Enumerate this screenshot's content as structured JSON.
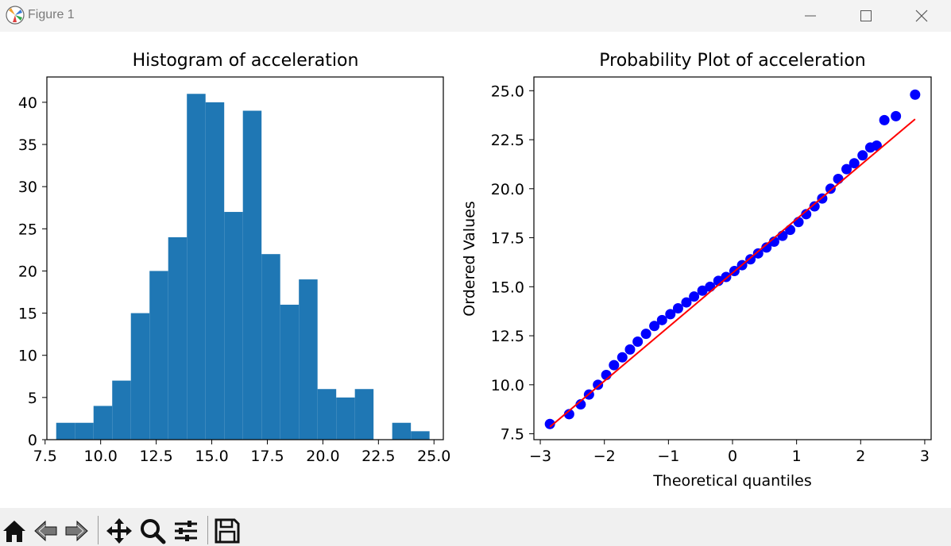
{
  "window": {
    "title": "Figure 1"
  },
  "toolbar": {
    "buttons": [
      "home-icon",
      "back-icon",
      "forward-icon",
      "pan-icon",
      "zoom-icon",
      "configure-icon",
      "save-icon"
    ]
  },
  "chart_data": [
    {
      "type": "bar",
      "title": "Histogram of acceleration",
      "xlabel": "",
      "ylabel": "",
      "xlim": [
        7.58,
        25.42
      ],
      "ylim": [
        0,
        43
      ],
      "xticks": [
        "7.5",
        "10.0",
        "12.5",
        "15.0",
        "17.5",
        "20.0",
        "22.5",
        "25.0"
      ],
      "yticks": [
        "0",
        "5",
        "10",
        "15",
        "20",
        "25",
        "30",
        "35",
        "40"
      ],
      "bin_edges": [
        8.0,
        8.84,
        9.68,
        10.52,
        11.36,
        12.2,
        13.04,
        13.88,
        14.72,
        15.56,
        16.4,
        17.24,
        18.08,
        18.92,
        19.76,
        20.6,
        21.44,
        22.28,
        23.12,
        23.96,
        24.8
      ],
      "counts": [
        2,
        2,
        4,
        7,
        15,
        20,
        24,
        41,
        40,
        27,
        39,
        22,
        16,
        19,
        6,
        5,
        6,
        0,
        2,
        1
      ],
      "color": "#1f77b4"
    },
    {
      "type": "scatter",
      "title": "Probability Plot of acceleration",
      "xlabel": "Theoretical quantiles",
      "ylabel": "Ordered Values",
      "xlim": [
        -3.1,
        3.1
      ],
      "ylim": [
        7.2,
        25.7
      ],
      "xticks": [
        "−3",
        "−2",
        "−1",
        "0",
        "1",
        "2",
        "3"
      ],
      "yticks": [
        "7.5",
        "10.0",
        "12.5",
        "15.0",
        "17.5",
        "20.0",
        "22.5",
        "25.0"
      ],
      "points_x": [
        -2.85,
        -2.55,
        -2.37,
        -2.24,
        -2.1,
        -1.97,
        -1.85,
        -1.72,
        -1.6,
        -1.48,
        -1.35,
        -1.22,
        -1.1,
        -0.97,
        -0.85,
        -0.72,
        -0.6,
        -0.47,
        -0.35,
        -0.22,
        -0.1,
        0.03,
        0.15,
        0.28,
        0.4,
        0.53,
        0.65,
        0.78,
        0.9,
        1.03,
        1.15,
        1.28,
        1.4,
        1.53,
        1.65,
        1.78,
        1.9,
        2.03,
        2.15,
        2.25,
        2.37,
        2.55,
        2.85
      ],
      "points_y": [
        8.0,
        8.5,
        9.0,
        9.5,
        10.0,
        10.5,
        11.0,
        11.4,
        11.8,
        12.2,
        12.6,
        13.0,
        13.3,
        13.6,
        13.9,
        14.2,
        14.5,
        14.8,
        15.0,
        15.3,
        15.5,
        15.8,
        16.1,
        16.4,
        16.7,
        17.0,
        17.3,
        17.6,
        17.9,
        18.3,
        18.7,
        19.1,
        19.5,
        20.0,
        20.5,
        21.0,
        21.3,
        21.7,
        22.1,
        22.2,
        23.5,
        23.7,
        24.8
      ],
      "fit_line": {
        "x": [
          -2.85,
          2.85
        ],
        "y": [
          7.85,
          23.55
        ],
        "color": "#ff0000"
      },
      "marker_color": "#0000ff"
    }
  ]
}
